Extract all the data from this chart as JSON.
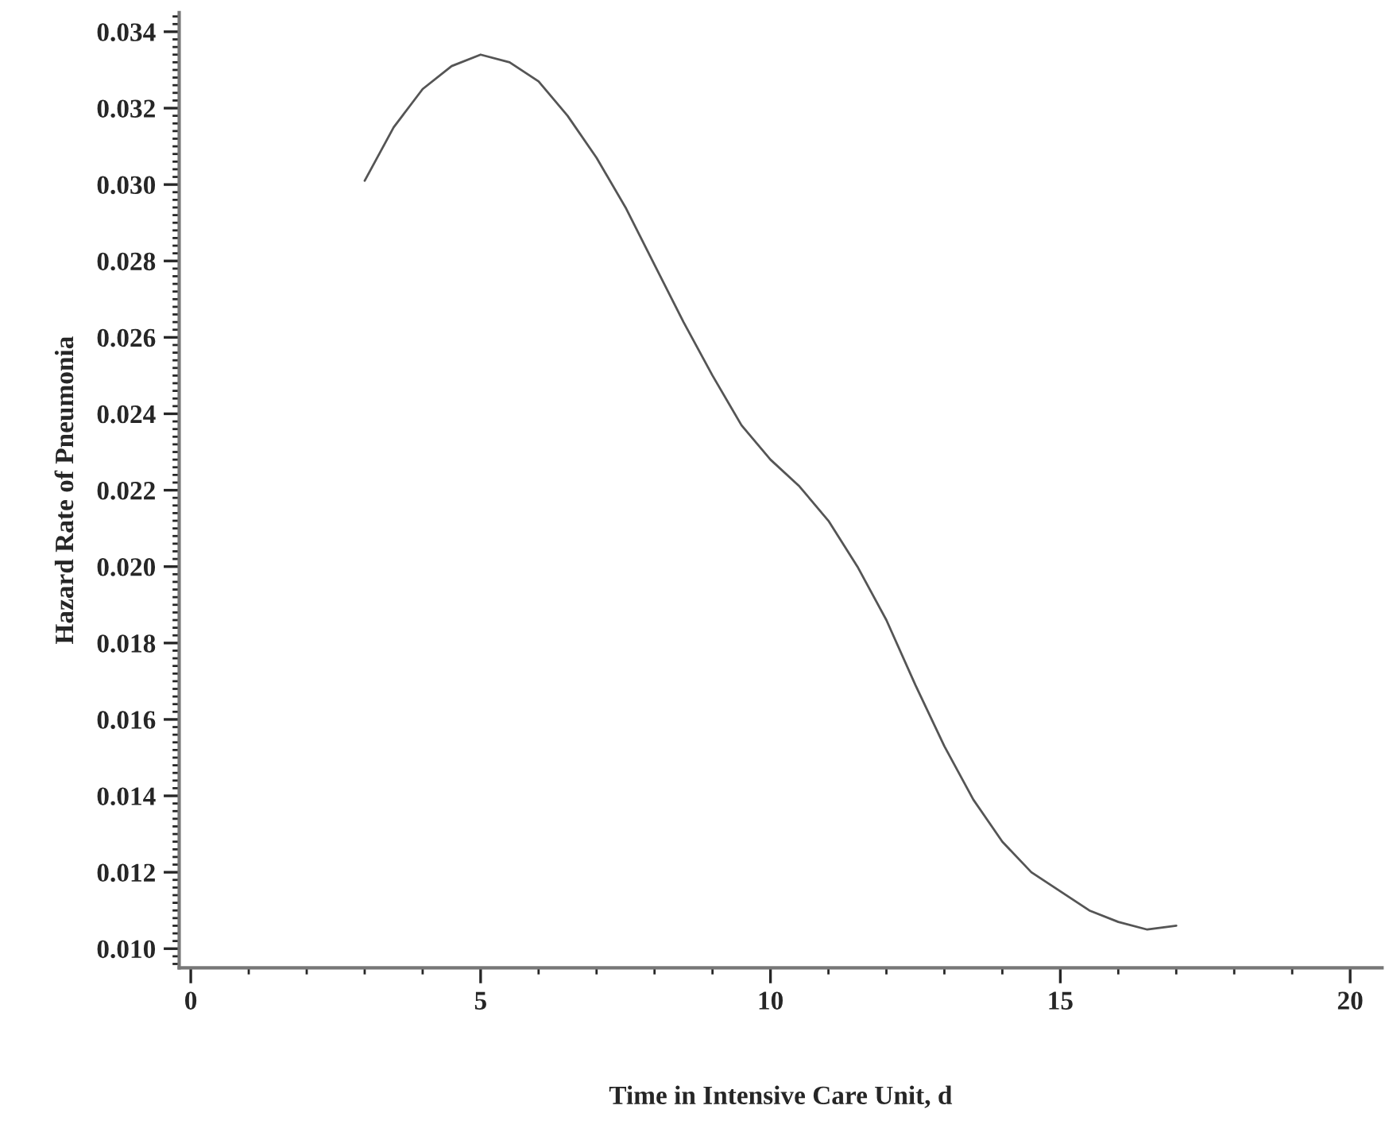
{
  "chart_data": {
    "type": "line",
    "xlabel": "Time in Intensive Care Unit, d",
    "ylabel": "Hazard Rate of Pneumonia",
    "x": [
      3,
      3.5,
      4,
      4.5,
      5,
      5.5,
      6,
      6.5,
      7,
      7.5,
      8,
      8.5,
      9,
      9.5,
      10,
      10.5,
      11,
      11.5,
      12,
      12.5,
      13,
      13.5,
      14,
      14.5,
      15,
      15.5,
      16,
      16.5,
      17
    ],
    "series": [
      {
        "color": "#555555",
        "values": [
          0.0301,
          0.0315,
          0.0325,
          0.0331,
          0.0334,
          0.0332,
          0.0327,
          0.0318,
          0.0307,
          0.0294,
          0.0279,
          0.0264,
          0.025,
          0.0237,
          0.0228,
          0.0221,
          0.0212,
          0.02,
          0.0186,
          0.0169,
          0.0153,
          0.0139,
          0.0128,
          0.012,
          0.0115,
          0.011,
          0.0107,
          0.0105,
          0.0106
        ]
      }
    ],
    "xlim": [
      -0.2,
      20.55
    ],
    "ylim": [
      0.0095,
      0.0345
    ],
    "xticks": [
      0,
      5,
      10,
      15,
      20
    ],
    "yticks": [
      {
        "value": 0.01,
        "label": "0.010"
      },
      {
        "value": 0.012,
        "label": "0.012"
      },
      {
        "value": 0.014,
        "label": "0.014"
      },
      {
        "value": 0.016,
        "label": "0.016"
      },
      {
        "value": 0.018,
        "label": "0.018"
      },
      {
        "value": 0.02,
        "label": "0.020"
      },
      {
        "value": 0.022,
        "label": "0.022"
      },
      {
        "value": 0.024,
        "label": "0.024"
      },
      {
        "value": 0.026,
        "label": "0.026"
      },
      {
        "value": 0.028,
        "label": "0.028"
      },
      {
        "value": 0.03,
        "label": "0.030"
      },
      {
        "value": 0.032,
        "label": "0.032"
      },
      {
        "value": 0.034,
        "label": "0.034"
      }
    ],
    "grid": false,
    "legend": false,
    "marker": "none",
    "line_style": "solid"
  }
}
